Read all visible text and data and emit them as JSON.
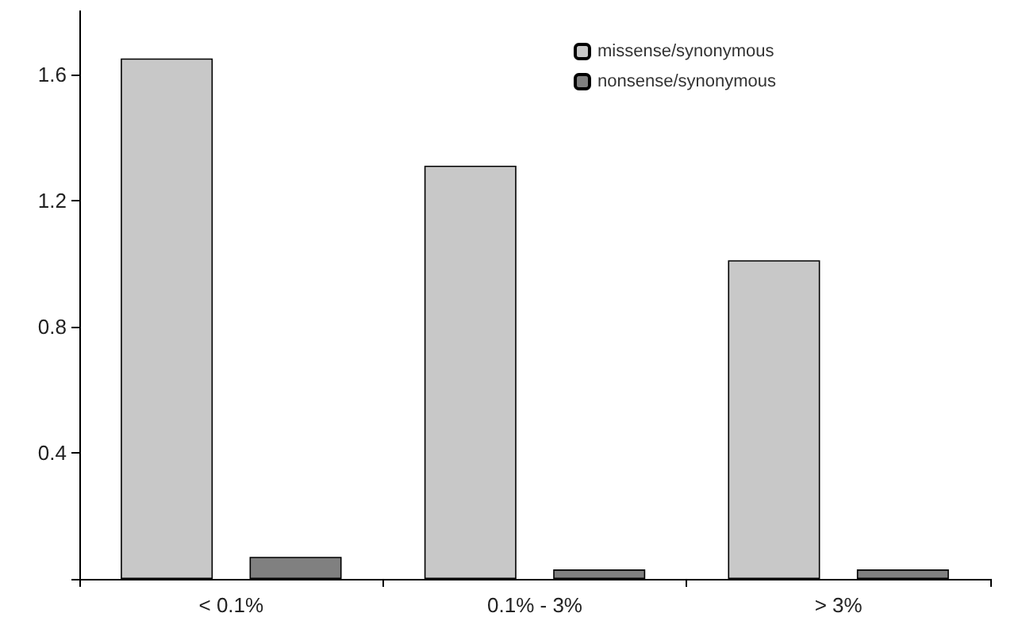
{
  "chart_data": {
    "type": "bar",
    "categories": [
      "< 0.1%",
      "0.1% - 3%",
      "> 3%"
    ],
    "series": [
      {
        "name": "missense/synonymous",
        "color": "#c8c8c8",
        "values": [
          1.65,
          1.31,
          1.01
        ]
      },
      {
        "name": "nonsense/synonymous",
        "color": "#808080",
        "values": [
          0.07,
          0.03,
          0.03
        ]
      }
    ],
    "ylim": [
      0,
      1.8
    ],
    "yticks": [
      {
        "value": 0,
        "label": null
      },
      0.4,
      0.8,
      1.2,
      1.6
    ],
    "grid": false,
    "legend": "top right"
  }
}
